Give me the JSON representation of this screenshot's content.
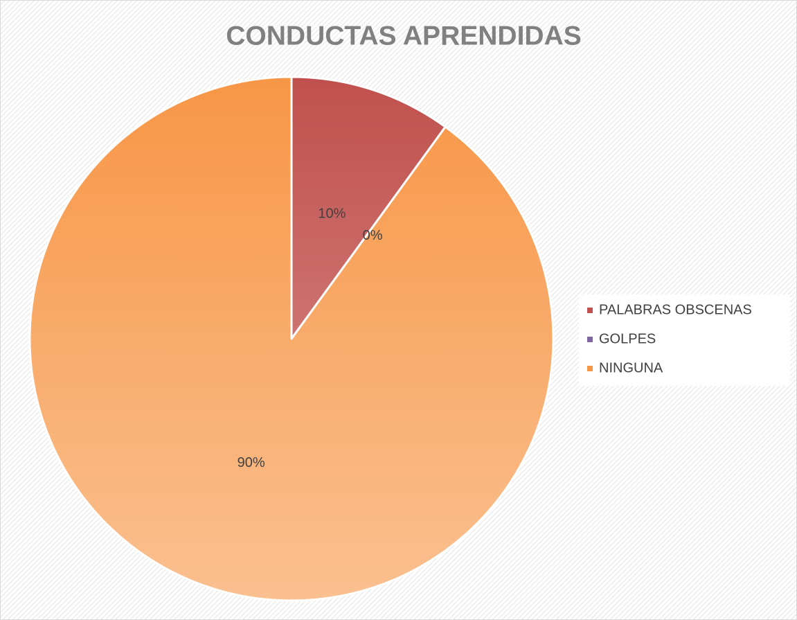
{
  "chart_data": {
    "type": "pie",
    "title": "CONDUCTAS APRENDIDAS",
    "categories": [
      "PALABRAS OBSCENAS",
      "GOLPES",
      "NINGUNA"
    ],
    "values": [
      10,
      0,
      90
    ],
    "value_labels": [
      "10%",
      "0%",
      "90%"
    ],
    "colors": [
      "#c0504d",
      "#8064a2",
      "#f79646"
    ],
    "legend": "right"
  }
}
